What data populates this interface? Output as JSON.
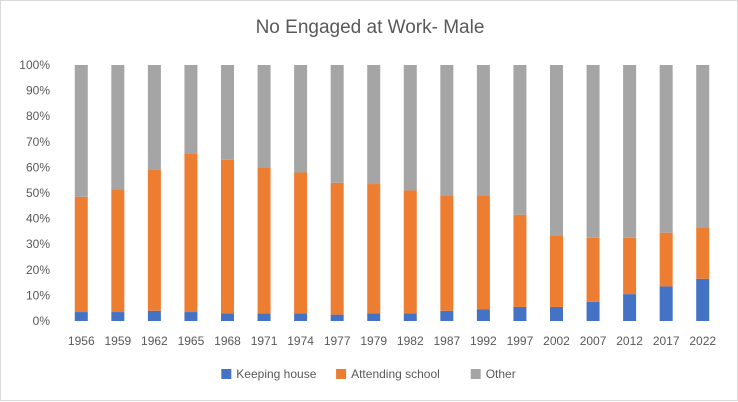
{
  "chart_data": {
    "type": "bar",
    "stacked": true,
    "percent": true,
    "title": "No Engaged at Work- Male",
    "xlabel": "",
    "ylabel": "",
    "categories": [
      "1956",
      "1959",
      "1962",
      "1965",
      "1968",
      "1971",
      "1974",
      "1977",
      "1979",
      "1982",
      "1987",
      "1992",
      "1997",
      "2002",
      "2007",
      "2012",
      "2017",
      "2022"
    ],
    "y_ticks": [
      "0%",
      "10%",
      "20%",
      "30%",
      "40%",
      "50%",
      "60%",
      "70%",
      "80%",
      "90%",
      "100%"
    ],
    "ylim": [
      0,
      100
    ],
    "grid": false,
    "legend_position": "bottom",
    "series": [
      {
        "name": "Keeping house",
        "color": "#4472c4",
        "values": [
          3.5,
          3.5,
          4,
          3.5,
          3,
          3,
          3,
          2.5,
          3,
          3,
          4,
          4.5,
          5.5,
          5.5,
          7.5,
          10.5,
          13.5,
          16.5
        ]
      },
      {
        "name": "Attending school",
        "color": "#ed7d31",
        "values": [
          45,
          48,
          55,
          62,
          60,
          57,
          55,
          51.5,
          50.5,
          48,
          45,
          44.5,
          36,
          28,
          25,
          22,
          21,
          20
        ]
      },
      {
        "name": "Other",
        "color": "#a5a5a5",
        "values": [
          51.5,
          48.5,
          41,
          34.5,
          37,
          40,
          42,
          46,
          46.5,
          49,
          51,
          51,
          58.5,
          66.5,
          67.5,
          67.5,
          65.5,
          63.5
        ]
      }
    ]
  }
}
